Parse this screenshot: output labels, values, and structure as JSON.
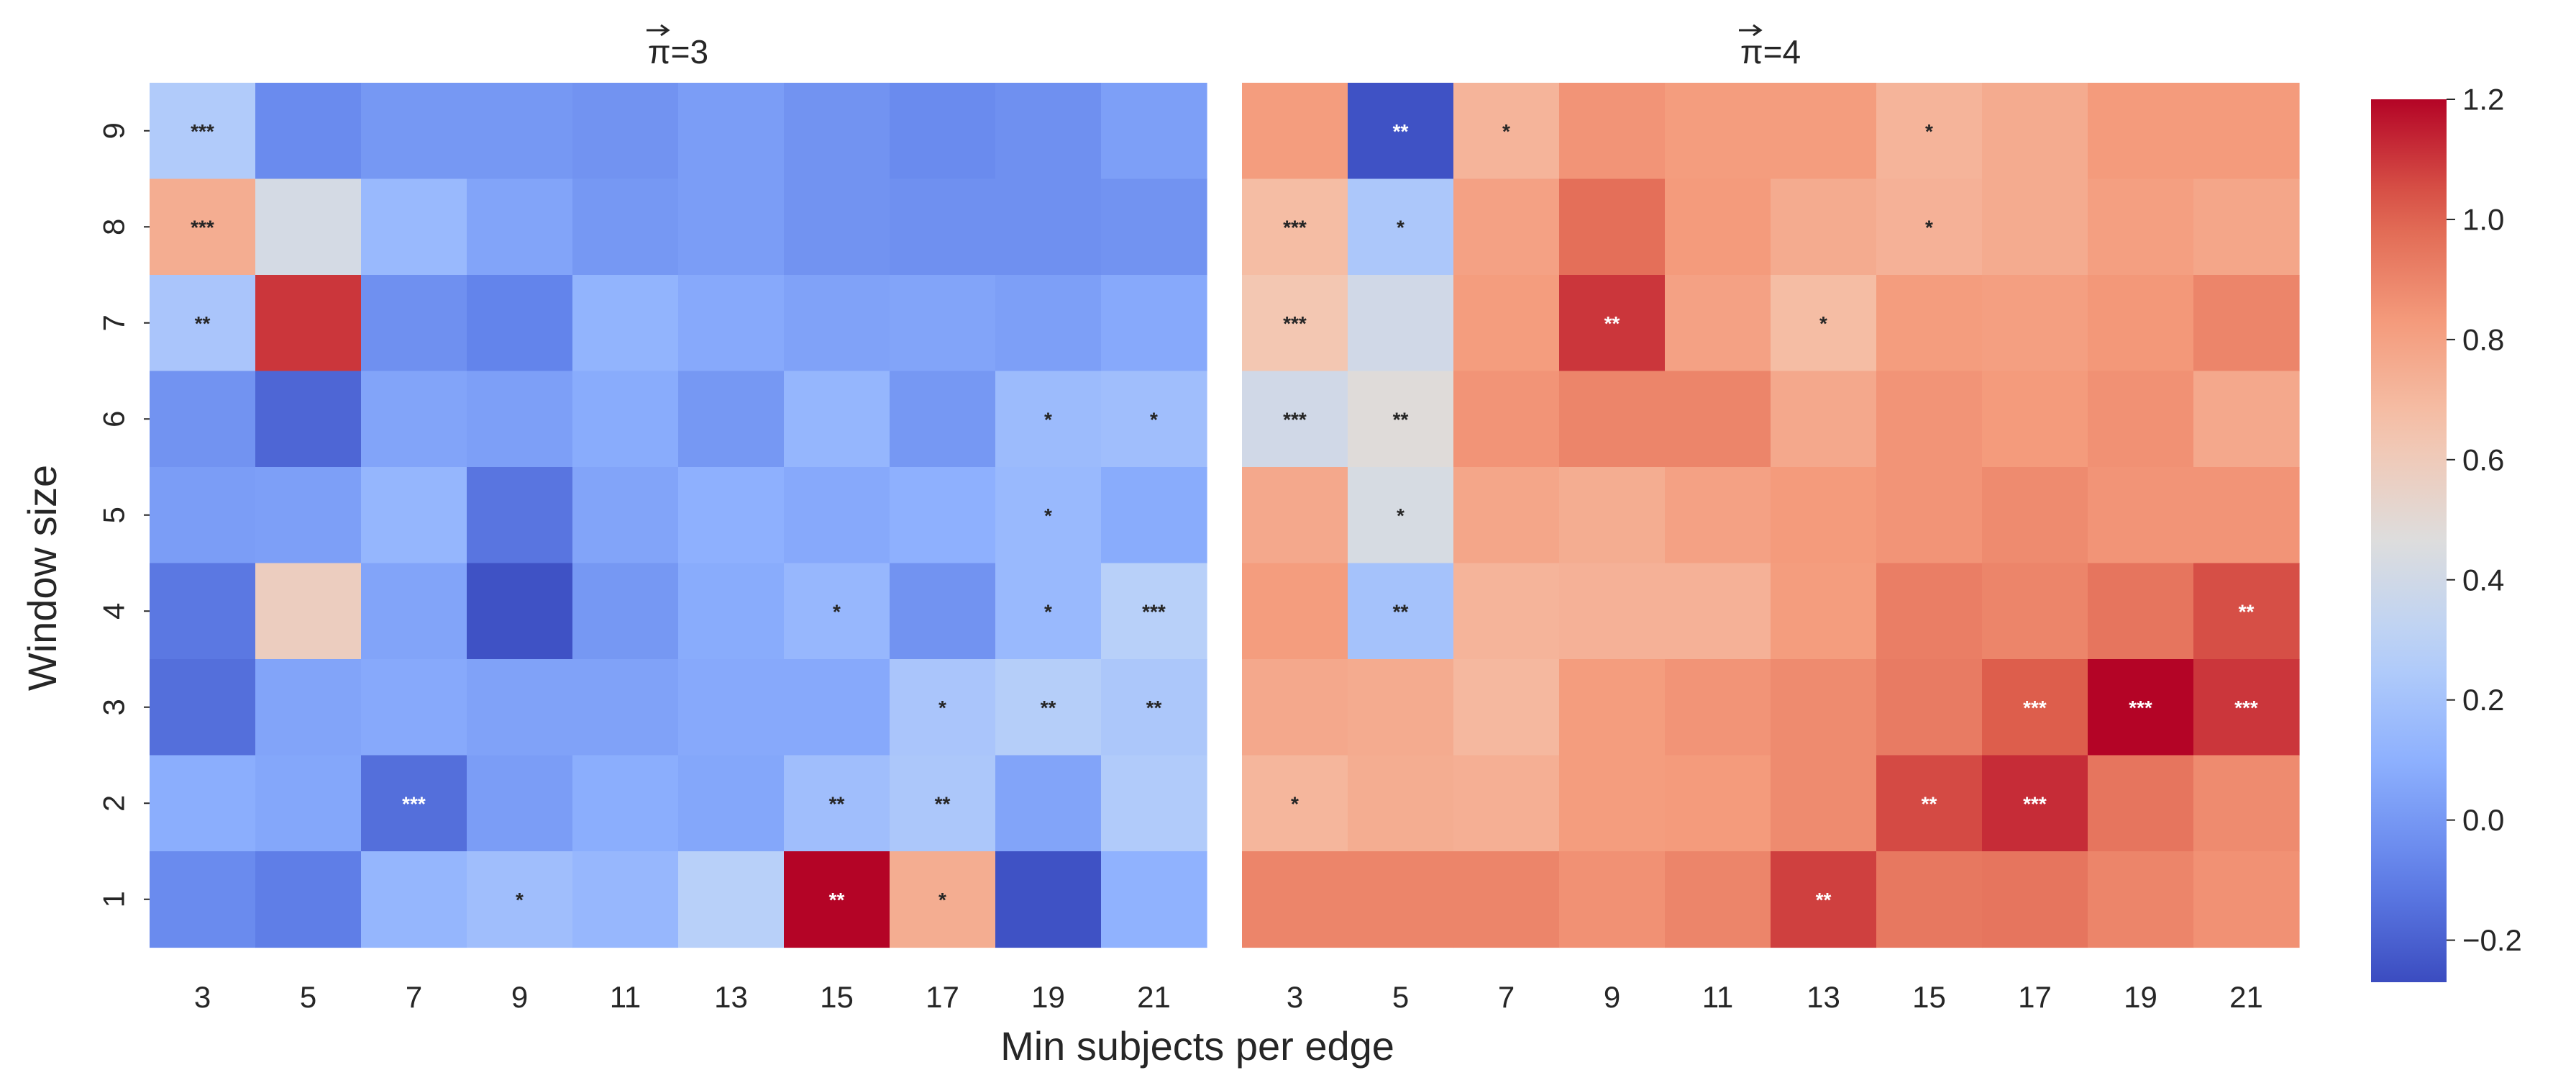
{
  "chart_data": {
    "type": "heatmap",
    "xlabel": "Min subjects per edge",
    "ylabel": "Window size",
    "x": [
      3,
      5,
      7,
      9,
      11,
      13,
      15,
      17,
      19,
      21
    ],
    "y": [
      9,
      8,
      7,
      6,
      5,
      4,
      3,
      2,
      1
    ],
    "colorbar": {
      "colormap": "coolwarm",
      "vmin": -0.27,
      "vmax": 1.2,
      "ticks": [
        "1.2",
        "1.0",
        "0.8",
        "0.6",
        "0.4",
        "0.2",
        "0.0",
        "−0.2"
      ]
    },
    "panels": [
      {
        "title": "π=3",
        "title_vector_arrow": true,
        "values": [
          [
            0.25,
            -0.05,
            0.0,
            0.0,
            -0.02,
            0.02,
            -0.02,
            -0.05,
            -0.03,
            0.03
          ],
          [
            0.75,
            0.42,
            0.15,
            0.05,
            0.0,
            0.02,
            -0.02,
            -0.03,
            -0.03,
            -0.02
          ],
          [
            0.22,
            1.1,
            -0.03,
            -0.08,
            0.12,
            0.07,
            0.04,
            0.05,
            0.03,
            0.07
          ],
          [
            -0.02,
            -0.18,
            0.05,
            0.03,
            0.08,
            0.0,
            0.13,
            0.0,
            0.16,
            0.18
          ],
          [
            0.02,
            0.03,
            0.13,
            -0.13,
            0.05,
            0.1,
            0.07,
            0.1,
            0.15,
            0.08
          ],
          [
            -0.12,
            0.58,
            0.05,
            -0.25,
            0.0,
            0.08,
            0.14,
            -0.02,
            0.15,
            0.28
          ],
          [
            -0.15,
            0.05,
            0.07,
            0.04,
            0.04,
            0.07,
            0.07,
            0.22,
            0.27,
            0.23
          ],
          [
            0.09,
            0.06,
            -0.15,
            0.02,
            0.09,
            0.06,
            0.18,
            0.23,
            0.05,
            0.25
          ],
          [
            -0.05,
            -0.1,
            0.13,
            0.18,
            0.14,
            0.28,
            1.2,
            0.75,
            -0.25,
            0.11
          ]
        ],
        "annotations": [
          [
            "***",
            "",
            "",
            "",
            "",
            "",
            "",
            "",
            "",
            ""
          ],
          [
            "***",
            "",
            "",
            "",
            "",
            "",
            "",
            "",
            "",
            ""
          ],
          [
            "**",
            "",
            "",
            "",
            "",
            "",
            "",
            "",
            "",
            ""
          ],
          [
            "",
            "",
            "",
            "",
            "",
            "",
            "",
            "",
            "*",
            "*"
          ],
          [
            "",
            "",
            "",
            "",
            "",
            "",
            "",
            "",
            "*",
            ""
          ],
          [
            "",
            "",
            "",
            "",
            "",
            "",
            "*",
            "",
            "*",
            "***"
          ],
          [
            "",
            "",
            "",
            "",
            "",
            "",
            "",
            "*",
            "**",
            "**"
          ],
          [
            "",
            "",
            "***",
            "",
            "",
            "",
            "**",
            "**",
            "",
            ""
          ],
          [
            "",
            "",
            "",
            "*",
            "",
            "",
            "**",
            "*",
            "",
            ""
          ]
        ]
      },
      {
        "title": "π=4",
        "title_vector_arrow": true,
        "values": [
          [
            0.82,
            -0.25,
            0.72,
            0.85,
            0.82,
            0.82,
            0.72,
            0.76,
            0.83,
            0.83
          ],
          [
            0.68,
            0.23,
            0.8,
            0.97,
            0.83,
            0.76,
            0.73,
            0.76,
            0.81,
            0.78
          ],
          [
            0.63,
            0.4,
            0.82,
            1.1,
            0.8,
            0.68,
            0.82,
            0.81,
            0.84,
            0.9
          ],
          [
            0.4,
            0.48,
            0.85,
            0.9,
            0.9,
            0.77,
            0.85,
            0.83,
            0.86,
            0.77
          ],
          [
            0.77,
            0.43,
            0.78,
            0.75,
            0.8,
            0.83,
            0.85,
            0.88,
            0.85,
            0.85
          ],
          [
            0.82,
            0.2,
            0.72,
            0.73,
            0.73,
            0.82,
            0.92,
            0.9,
            0.95,
            1.05
          ],
          [
            0.77,
            0.76,
            0.7,
            0.82,
            0.85,
            0.88,
            0.93,
            1.02,
            1.2,
            1.1
          ],
          [
            0.71,
            0.75,
            0.74,
            0.82,
            0.83,
            0.88,
            1.06,
            1.12,
            0.95,
            0.88
          ],
          [
            0.9,
            0.9,
            0.9,
            0.86,
            0.9,
            1.08,
            0.94,
            0.95,
            0.9,
            0.86
          ]
        ],
        "annotations": [
          [
            "",
            "**",
            "*",
            "",
            "",
            "",
            "*",
            "",
            "",
            ""
          ],
          [
            "***",
            "*",
            "",
            "",
            "",
            "",
            "*",
            "",
            "",
            ""
          ],
          [
            "***",
            "",
            "",
            "**",
            "",
            "*",
            "",
            "",
            "",
            ""
          ],
          [
            "***",
            "**",
            "",
            "",
            "",
            "",
            "",
            "",
            "",
            ""
          ],
          [
            "",
            "*",
            "",
            "",
            "",
            "",
            "",
            "",
            "",
            ""
          ],
          [
            "",
            "**",
            "",
            "",
            "",
            "",
            "",
            "",
            "",
            "**"
          ],
          [
            "",
            "",
            "",
            "",
            "",
            "",
            "",
            "***",
            "***",
            "***"
          ],
          [
            "*",
            "",
            "",
            "",
            "",
            "",
            "**",
            "***",
            "",
            ""
          ],
          [
            "",
            "",
            "",
            "",
            "",
            "**",
            "",
            "",
            "",
            ""
          ]
        ]
      }
    ]
  }
}
